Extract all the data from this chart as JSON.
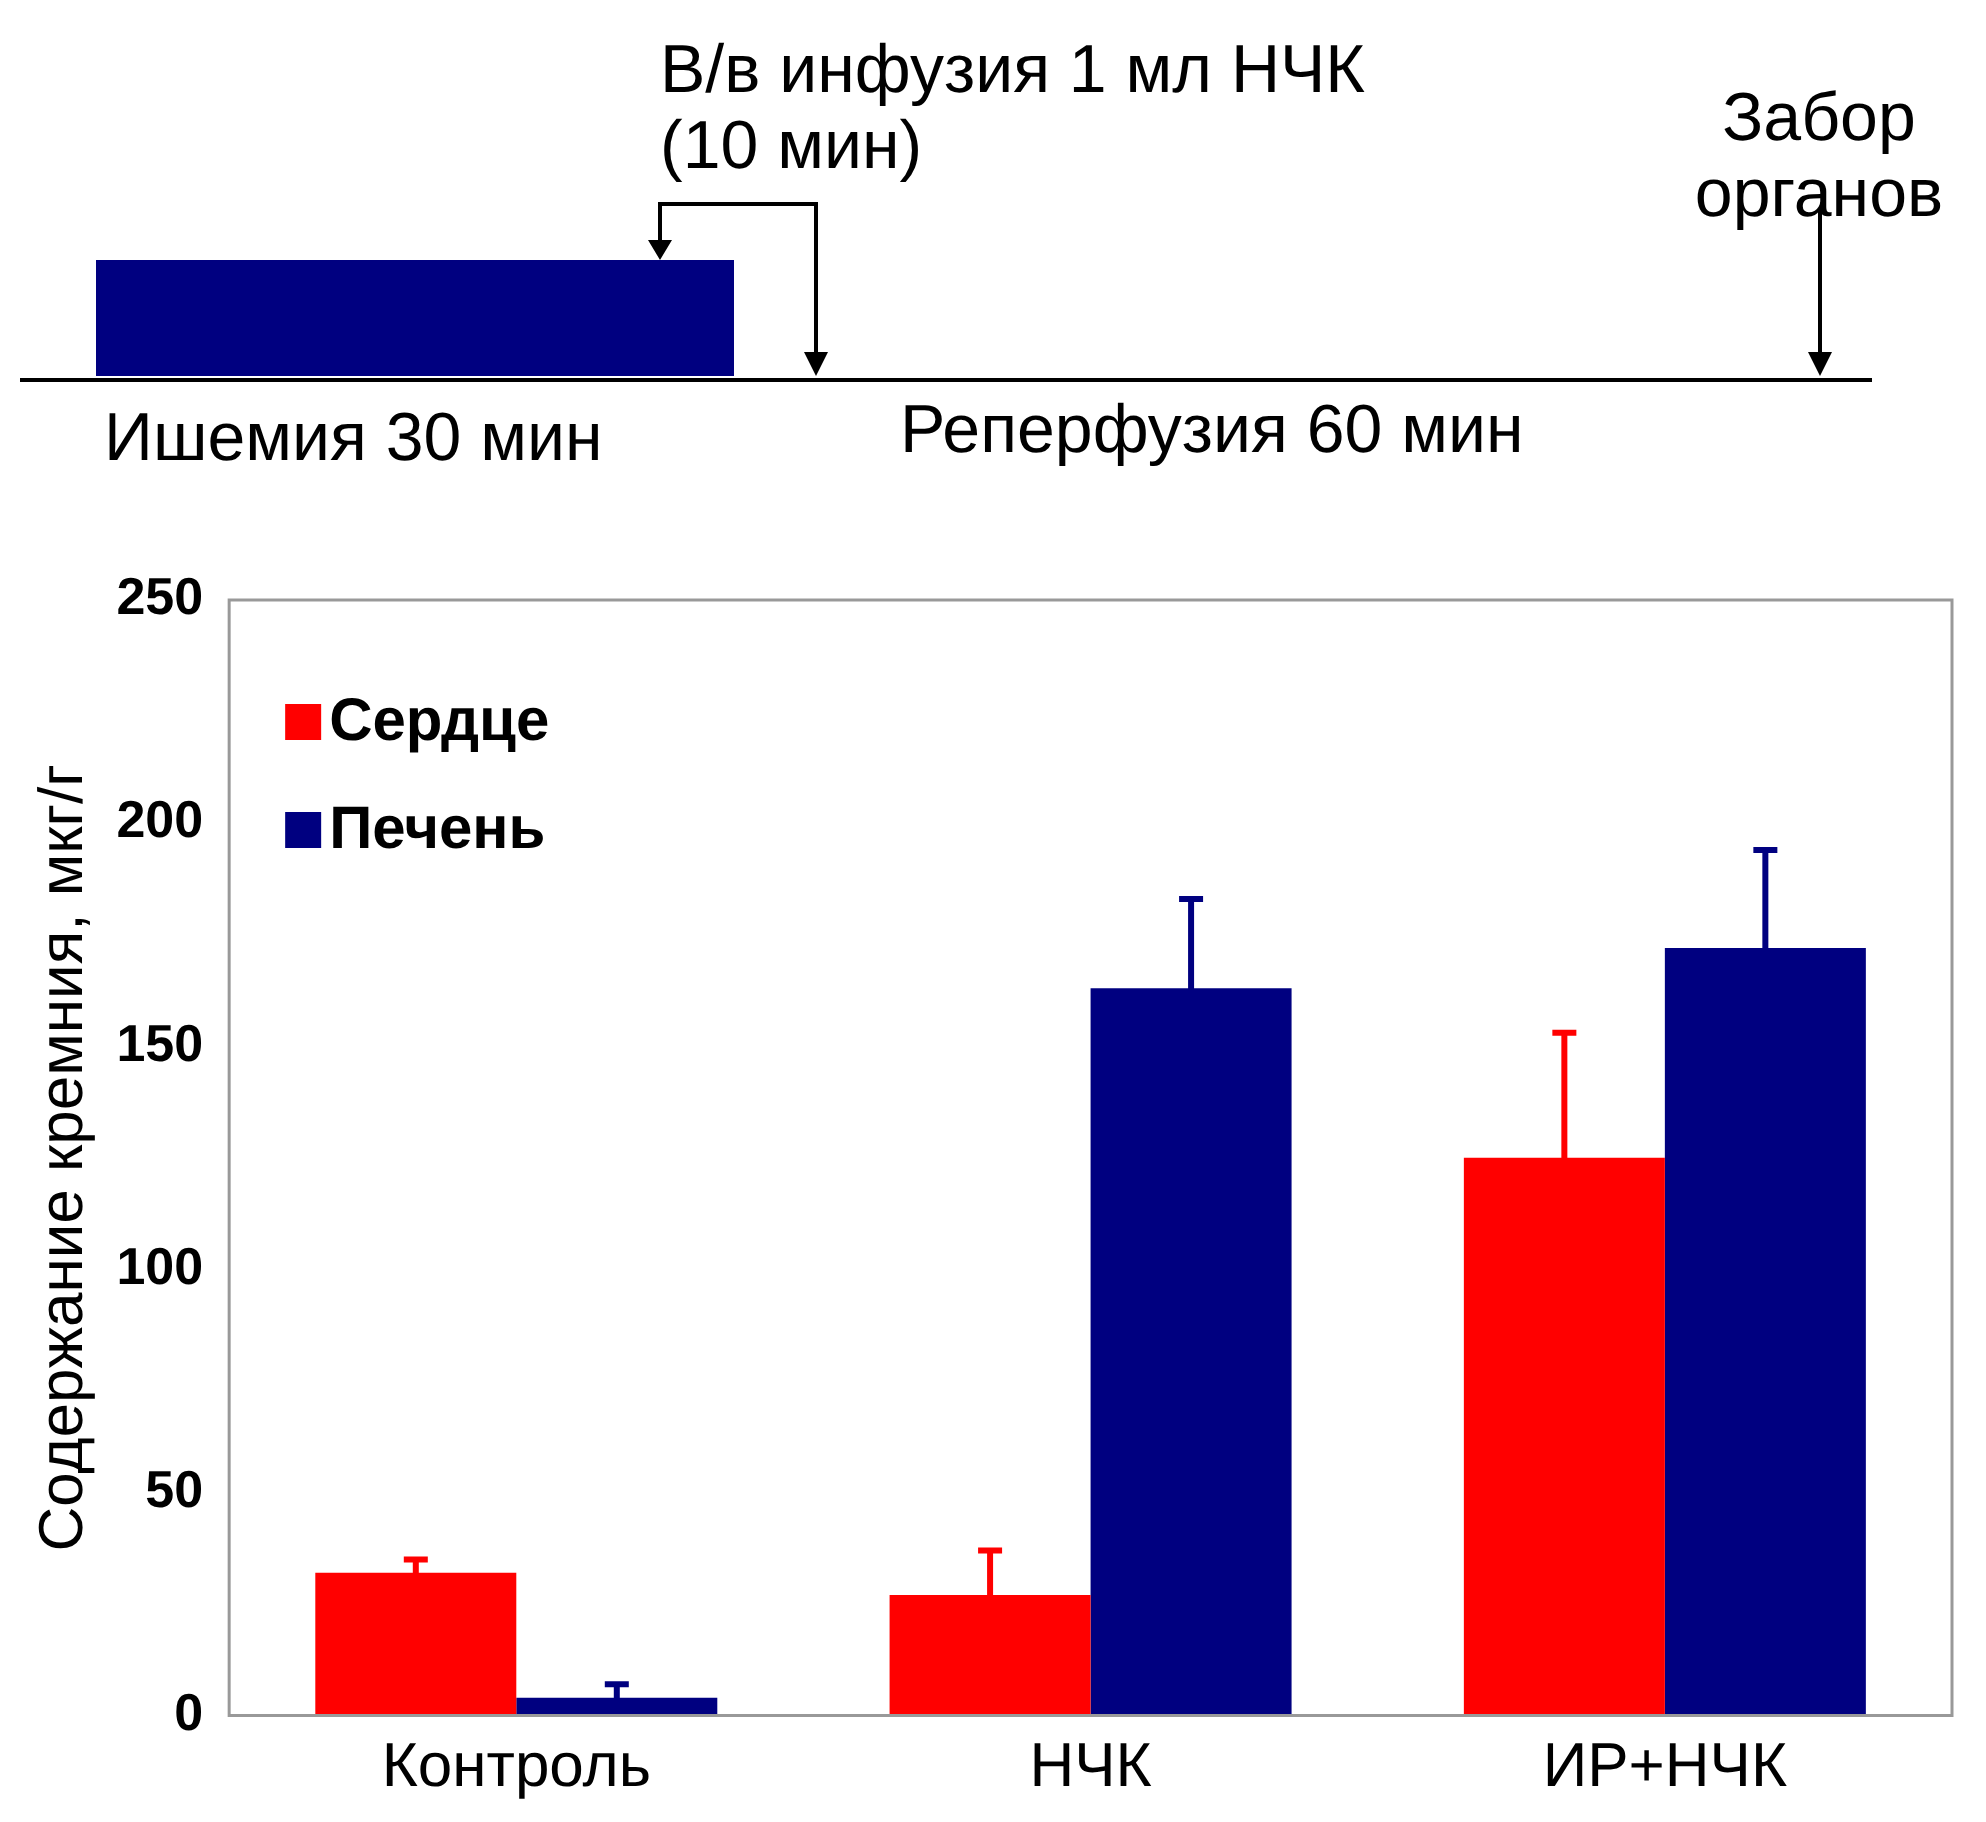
{
  "chart_data": {
    "type": "bar",
    "ylabel": "Содержание кремния, мкг/г",
    "categories": [
      "Контроль",
      "НЧК",
      "ИР+НЧК"
    ],
    "series": [
      {
        "name": "Сердце",
        "color": "#ff0000",
        "values": [
          32,
          27,
          125
        ],
        "errors": [
          3,
          10,
          28
        ]
      },
      {
        "name": "Печень",
        "color": "#000080",
        "values": [
          4,
          163,
          172
        ],
        "errors": [
          3,
          20,
          22
        ]
      }
    ],
    "ylim": [
      0,
      250
    ],
    "yticks": [
      0,
      50,
      100,
      150,
      200,
      250
    ],
    "grid": false,
    "legend": "top left",
    "annotations": [
      "В/в инфузия 1 мл НЧК (10 мин)",
      "Забор органов",
      "Ишемия 30 мин",
      "Реперфузия 60 мин"
    ]
  }
}
